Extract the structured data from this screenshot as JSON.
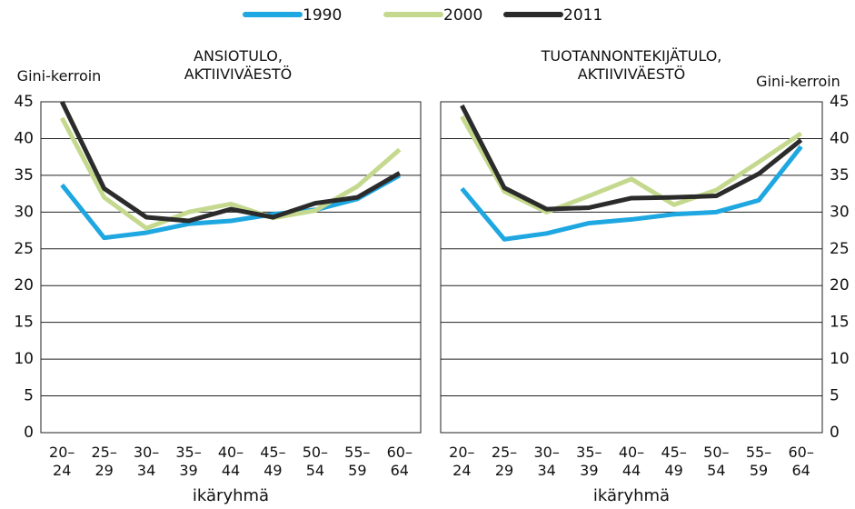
{
  "chart_data": [
    {
      "type": "line",
      "title": "ANSIOTULO, AKTIIVIVÄESTÖ",
      "y_label": "Gini-kerroin",
      "x_label": "ikäryhmä",
      "y_axis_side": "left",
      "categories": [
        "20–24",
        "25–29",
        "30–34",
        "35–39",
        "40–44",
        "45–49",
        "50–54",
        "55–59",
        "60–64"
      ],
      "ylim": [
        0,
        45
      ],
      "yticks": [
        0,
        5,
        10,
        15,
        20,
        25,
        30,
        35,
        40,
        45
      ],
      "grid": true,
      "series": [
        {
          "name": "1990",
          "color": "#1ea7e1",
          "values": [
            33.7,
            26.5,
            27.2,
            28.4,
            28.8,
            29.7,
            30.3,
            31.8,
            35.0
          ]
        },
        {
          "name": "2000",
          "color": "#c5d98e",
          "values": [
            42.8,
            32.0,
            27.8,
            30.0,
            31.1,
            29.2,
            30.2,
            33.5,
            38.5
          ]
        },
        {
          "name": "2011",
          "color": "#2b2b2b",
          "values": [
            45.0,
            33.2,
            29.3,
            28.8,
            30.4,
            29.3,
            31.2,
            32.0,
            35.3
          ]
        }
      ]
    },
    {
      "type": "line",
      "title": "TUOTANNONTEKIJÄTULO, AKTIIVIVÄESTÖ",
      "y_label": "Gini-kerroin",
      "x_label": "ikäryhmä",
      "y_axis_side": "right",
      "categories": [
        "20–24",
        "25–29",
        "30–34",
        "35–39",
        "40–44",
        "45–49",
        "50–54",
        "55–59",
        "60–64"
      ],
      "ylim": [
        0,
        45
      ],
      "yticks": [
        0,
        5,
        10,
        15,
        20,
        25,
        30,
        35,
        40,
        45
      ],
      "grid": true,
      "series": [
        {
          "name": "1990",
          "color": "#1ea7e1",
          "values": [
            33.2,
            26.3,
            27.1,
            28.5,
            29.0,
            29.7,
            30.0,
            31.6,
            38.9
          ]
        },
        {
          "name": "2000",
          "color": "#c5d98e",
          "values": [
            43.0,
            32.8,
            30.0,
            32.2,
            34.5,
            31.0,
            33.0,
            36.8,
            40.7
          ]
        },
        {
          "name": "2011",
          "color": "#2b2b2b",
          "values": [
            44.5,
            33.3,
            30.4,
            30.6,
            31.9,
            32.0,
            32.2,
            35.2,
            39.8
          ]
        }
      ]
    }
  ]
}
